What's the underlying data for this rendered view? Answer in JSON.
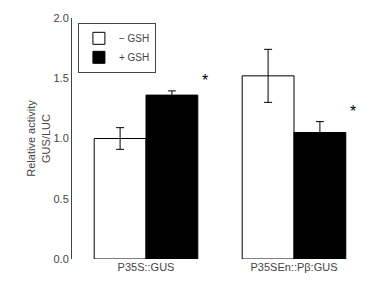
{
  "chart_data": {
    "type": "bar",
    "categories": [
      "P35S::GUS",
      "P35SEn::Pβ:GUS"
    ],
    "series": [
      {
        "name": "− GSH",
        "color": "#ffffff",
        "values": [
          1.0,
          1.52
        ],
        "errors": [
          0.09,
          0.22
        ]
      },
      {
        "name": "+ GSH",
        "color": "#000000",
        "values": [
          1.36,
          1.05
        ],
        "errors": [
          0.035,
          0.09
        ]
      }
    ],
    "ylabel": "Relative activity\nGUS/LUC",
    "ylim": [
      0,
      2.0
    ],
    "yticks": [
      {
        "value": 0,
        "label": "0.0"
      },
      0.5,
      {
        "value": 1.0,
        "label": "1.0"
      },
      1.5,
      {
        "value": 2.0,
        "label": "2.0"
      }
    ],
    "annotations": [
      {
        "text": "*",
        "category": "P35S::GUS",
        "series": "+ GSH"
      },
      {
        "text": "*",
        "category": "P35SEn::Pβ:GUS",
        "series": "+ GSH"
      }
    ],
    "legend": "upper left",
    "grid": false
  }
}
